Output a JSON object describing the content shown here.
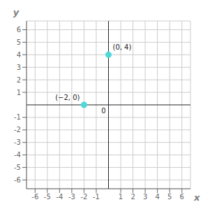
{
  "chart_data": {
    "type": "scatter",
    "x": [
      0,
      -2
    ],
    "values": [
      4,
      0
    ],
    "color": "#4dd9d9",
    "xlabel": "x",
    "ylabel": "y",
    "xlim": [
      -6.7,
      6.7
    ],
    "ylim": [
      -6.7,
      6.7
    ],
    "xticks": [
      -6,
      -5,
      -4,
      -3,
      -2,
      -1,
      1,
      2,
      3,
      4,
      5,
      6
    ],
    "yticks": [
      -6,
      -5,
      -4,
      -3,
      -2,
      -1,
      1,
      2,
      3,
      4,
      5,
      6
    ],
    "grid": true,
    "annotations": [
      {
        "text": "(0, 4)",
        "x": 0,
        "y": 4
      },
      {
        "text": "(−2, 0)",
        "x": -2,
        "y": 0
      },
      {
        "text": "0",
        "x": 0,
        "y": 0
      }
    ]
  }
}
